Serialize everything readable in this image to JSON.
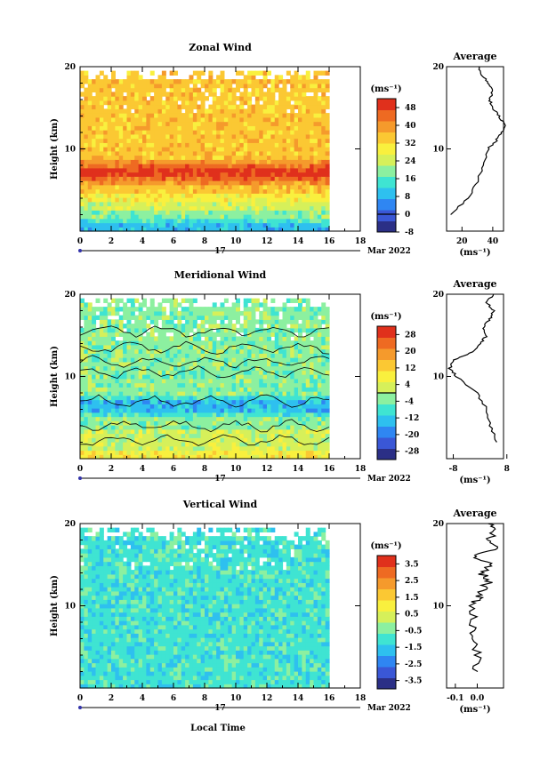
{
  "colors": {
    "scale": [
      "#2b2f86",
      "#3a57d6",
      "#2f86f2",
      "#2ec0ef",
      "#3fe4d2",
      "#8cf0a0",
      "#d6f05a",
      "#f9f03e",
      "#fbc833",
      "#f59a2c",
      "#ee6a22",
      "#e0301c"
    ],
    "frame": "#000000",
    "contour": "#000000",
    "time_axis": "#3333aa"
  },
  "chart_data": [
    {
      "id": "zonal",
      "type": "heatmap",
      "title": "Zonal Wind",
      "ylabel": "Height (km)",
      "x_ticks": [
        "0",
        "2",
        "4",
        "6",
        "8",
        "10",
        "12",
        "14",
        "16",
        "18"
      ],
      "y_ticks": [
        "10",
        "20"
      ],
      "xlim": [
        0,
        18
      ],
      "ylim": [
        0,
        20
      ],
      "data_x_end": 16,
      "date_label": "17",
      "month_label": "Mar 2022",
      "colorbar": {
        "unit": "(ms⁻¹)",
        "ticks": [
          "48",
          "40",
          "32",
          "24",
          "16",
          "8",
          "0",
          "-8"
        ],
        "range": [
          -8,
          52
        ],
        "zero_line": 0
      },
      "profile_km": [
        2,
        4,
        6,
        8,
        10,
        11,
        12,
        13,
        14,
        15,
        16,
        17,
        18,
        19,
        20
      ],
      "profile_ms": [
        12,
        24,
        30,
        34,
        37,
        42,
        46,
        48,
        44,
        40,
        38,
        40,
        37,
        33,
        31
      ],
      "profile_xlabel": "(ms⁻¹)",
      "profile_ticks": [
        "20",
        "40"
      ],
      "profile_xlim": [
        10,
        47
      ],
      "profile_title": "Average"
    },
    {
      "id": "meridional",
      "type": "heatmap",
      "title": "Meridional Wind",
      "ylabel": "Height (km)",
      "x_ticks": [
        "0",
        "2",
        "4",
        "6",
        "8",
        "10",
        "12",
        "14",
        "16",
        "18"
      ],
      "y_ticks": [
        "10",
        "20"
      ],
      "xlim": [
        0,
        18
      ],
      "ylim": [
        0,
        20
      ],
      "data_x_end": 16,
      "date_label": "17",
      "month_label": "Mar 2022",
      "colorbar": {
        "unit": "(ms⁻¹)",
        "ticks": [
          "28",
          "20",
          "12",
          "4",
          "-4",
          "-12",
          "-20",
          "-28"
        ],
        "range": [
          -32,
          32
        ],
        "zero_line": 0
      },
      "profile_km": [
        2,
        4,
        6,
        8,
        10,
        11,
        12,
        13,
        14,
        15,
        16,
        17,
        18,
        19,
        20
      ],
      "profile_ms": [
        5,
        3,
        2,
        -1,
        -7,
        -9,
        -8,
        -2,
        0,
        2,
        1,
        3,
        4,
        2,
        4
      ],
      "profile_xlabel": "(ms⁻¹)",
      "profile_ticks": [
        "-8",
        "8"
      ],
      "profile_xlim": [
        -10,
        7
      ],
      "profile_title": "Average"
    },
    {
      "id": "vertical",
      "type": "heatmap",
      "title": "Vertical Wind",
      "ylabel": "Height (km)",
      "x_ticks": [
        "0",
        "2",
        "4",
        "6",
        "8",
        "10",
        "12",
        "14",
        "16",
        "18"
      ],
      "y_ticks": [
        "10",
        "20"
      ],
      "xlim": [
        0,
        18
      ],
      "ylim": [
        0,
        20
      ],
      "data_x_end": 16,
      "date_label": "17",
      "month_label": "Mar 2022",
      "colorbar": {
        "unit": "(ms⁻¹)",
        "ticks": [
          "3.5",
          "2.5",
          "1.5",
          "0.5",
          "-0.5",
          "-1.5",
          "-2.5",
          "-3.5"
        ],
        "range": [
          -4,
          4
        ],
        "zero_line": null
      },
      "profile_km": [
        2,
        4,
        6,
        8,
        10,
        11,
        12,
        13,
        14,
        15,
        16,
        17,
        18,
        19,
        20
      ],
      "profile_ms": [
        -0.02,
        0.0,
        -0.03,
        -0.01,
        -0.02,
        0.01,
        0.03,
        0.05,
        0.02,
        0.06,
        -0.02,
        0.08,
        0.04,
        0.09,
        0.05
      ],
      "profile_xlabel": "(ms⁻¹)",
      "profile_ticks": [
        "-0.1",
        "0.0"
      ],
      "profile_xlim": [
        -0.14,
        0.12
      ],
      "profile_title": "Average"
    }
  ],
  "footer": {
    "xlabel": "Local Time"
  }
}
